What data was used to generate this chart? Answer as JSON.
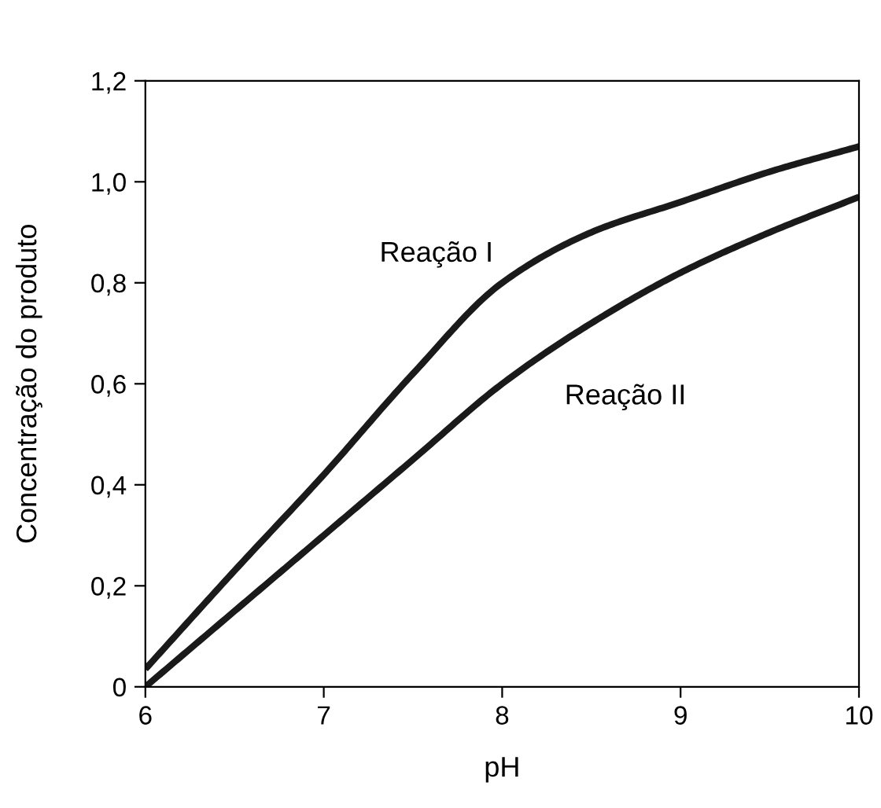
{
  "chart_data": {
    "type": "line",
    "xlabel": "pH",
    "ylabel": "Concentração do produto",
    "xlim": [
      6,
      10
    ],
    "ylim": [
      0,
      1.2
    ],
    "xticks": [
      6,
      7,
      8,
      9,
      10
    ],
    "yticks": [
      0,
      {
        "value": 0.2,
        "label": "0,2"
      },
      {
        "value": 0.4,
        "label": "0,4"
      },
      {
        "value": 0.6,
        "label": "0,6"
      },
      {
        "value": 0.8,
        "label": "0,8"
      },
      {
        "value": 1.0,
        "label": "1,0"
      },
      {
        "value": 1.2,
        "label": "1,2"
      }
    ],
    "grid": false,
    "legend": false,
    "marker": "none",
    "line_style": "solid",
    "series": [
      {
        "name": "Reação I",
        "color": "#1a1a1a",
        "x": [
          6,
          6.5,
          7,
          7.5,
          8,
          8.5,
          9,
          9.5,
          10
        ],
        "values": [
          0.035,
          0.23,
          0.42,
          0.62,
          0.8,
          0.9,
          0.96,
          1.02,
          1.07
        ]
      },
      {
        "name": "Reação II",
        "color": "#1a1a1a",
        "x": [
          6,
          6.5,
          7,
          7.5,
          8,
          8.5,
          9,
          9.5,
          10
        ],
        "values": [
          0,
          0.15,
          0.3,
          0.45,
          0.6,
          0.72,
          0.82,
          0.9,
          0.97
        ]
      }
    ]
  }
}
